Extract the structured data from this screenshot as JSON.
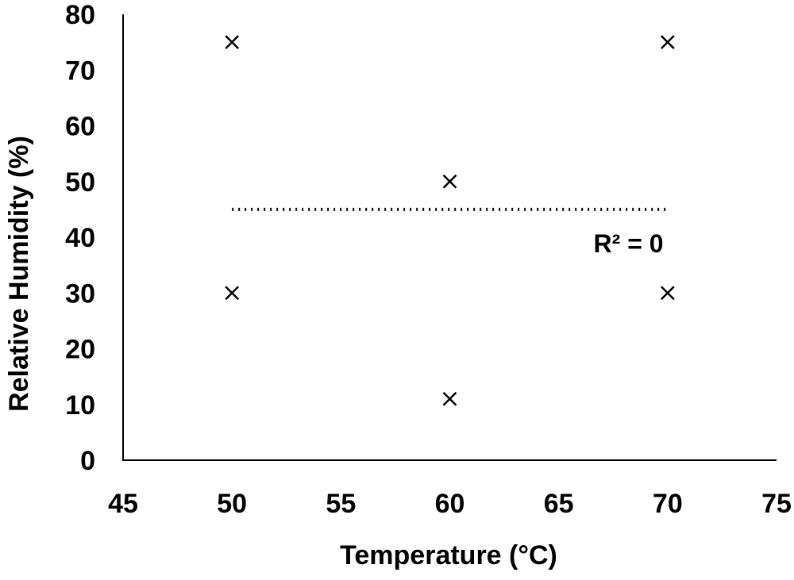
{
  "chart_data": {
    "type": "scatter",
    "title": "",
    "xlabel": "Temperature (°C)",
    "ylabel": "Relative Humidity (%)",
    "xlim": [
      45,
      75
    ],
    "ylim": [
      0,
      80
    ],
    "xticks": [
      45,
      50,
      55,
      60,
      65,
      70,
      75
    ],
    "yticks": [
      0,
      10,
      20,
      30,
      40,
      50,
      60,
      70,
      80
    ],
    "grid": false,
    "marker": "x",
    "points": [
      {
        "x": 50,
        "y": 75
      },
      {
        "x": 50,
        "y": 30
      },
      {
        "x": 60,
        "y": 50
      },
      {
        "x": 60,
        "y": 11
      },
      {
        "x": 70,
        "y": 75
      },
      {
        "x": 70,
        "y": 30
      }
    ],
    "trendline": {
      "style": "dotted",
      "x": [
        50,
        70
      ],
      "y": [
        45,
        45
      ]
    },
    "annotations": [
      {
        "text": "R² = 0",
        "x": 66.6,
        "y": 39
      }
    ],
    "colors": {
      "axis": "#000000",
      "marker": "#000000",
      "trendline": "#000000"
    }
  }
}
